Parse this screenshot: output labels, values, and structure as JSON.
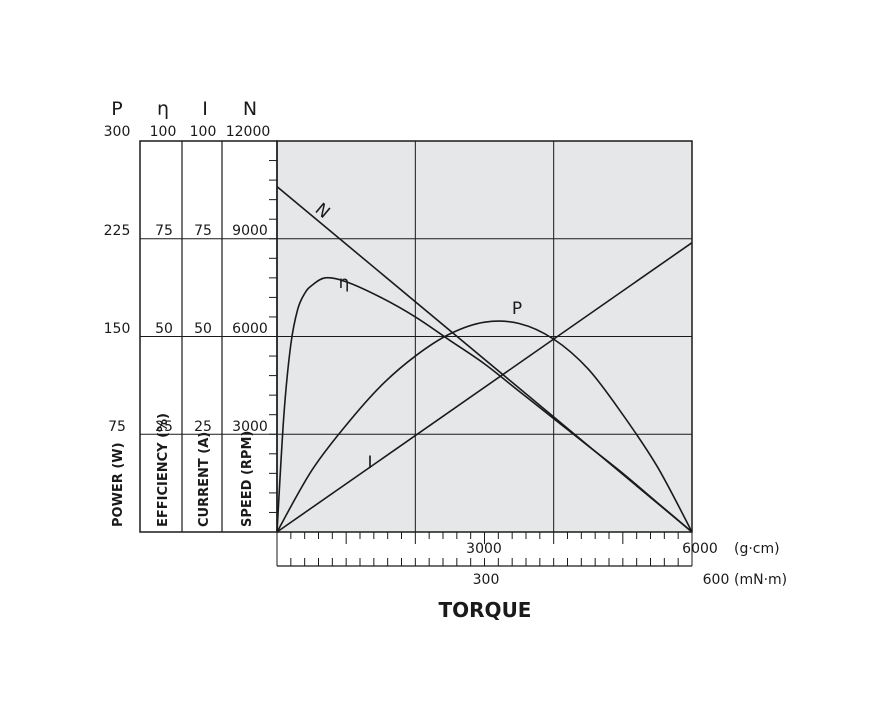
{
  "chart_data": {
    "type": "line",
    "title": "",
    "xlabel": "TORQUE",
    "x_units": [
      "(g·cm)",
      "(mN·m)"
    ],
    "x_gcm": {
      "range": [
        0,
        6000
      ],
      "tick_labels": [
        "3000",
        "6000"
      ]
    },
    "x_mNm": {
      "range": [
        0,
        600
      ],
      "tick_labels": [
        "300",
        "600"
      ]
    },
    "axes": [
      {
        "symbol": "P",
        "top": "300",
        "label": "POWER (W)",
        "ticks": [
          "225",
          "150",
          "75"
        ],
        "range": [
          0,
          300
        ]
      },
      {
        "symbol": "η",
        "top": "100",
        "label": "EFFICIENCY (%)",
        "ticks": [
          "75",
          "50",
          "25"
        ],
        "range": [
          0,
          100
        ]
      },
      {
        "symbol": "I",
        "top": "100",
        "label": "CURRENT (A)",
        "ticks": [
          "75",
          "50",
          "25"
        ],
        "range": [
          0,
          100
        ]
      },
      {
        "symbol": "N",
        "top": "12000",
        "label": "SPEED (RPM)",
        "ticks": [
          "9000",
          "6000",
          "3000"
        ],
        "range": [
          0,
          12000
        ]
      }
    ],
    "series": [
      {
        "name": "N",
        "axis": "SPEED (RPM)",
        "x": [
          0,
          6000
        ],
        "y": [
          10600,
          0
        ]
      },
      {
        "name": "I",
        "axis": "CURRENT (A)",
        "x": [
          0,
          6000
        ],
        "y": [
          0,
          74
        ]
      },
      {
        "name": "P",
        "axis": "POWER (W)",
        "x": [
          0,
          500,
          1000,
          1500,
          2000,
          2500,
          3000,
          3500,
          4000,
          4500,
          5000,
          5500,
          6000
        ],
        "y": [
          0,
          47,
          82,
          112,
          135,
          152,
          161,
          160,
          148,
          125,
          90,
          50,
          0
        ]
      },
      {
        "name": "η",
        "axis": "EFFICIENCY (%)",
        "x": [
          0,
          100,
          200,
          300,
          400,
          500,
          700,
          1000,
          1500,
          2000,
          2500,
          3000,
          3500,
          4000,
          4500,
          5000,
          5500,
          6000
        ],
        "y": [
          0,
          30,
          48,
          57,
          61,
          63,
          65,
          64,
          60,
          55,
          49,
          43,
          36,
          29,
          22,
          15,
          7.5,
          0
        ]
      }
    ],
    "grid": true
  }
}
